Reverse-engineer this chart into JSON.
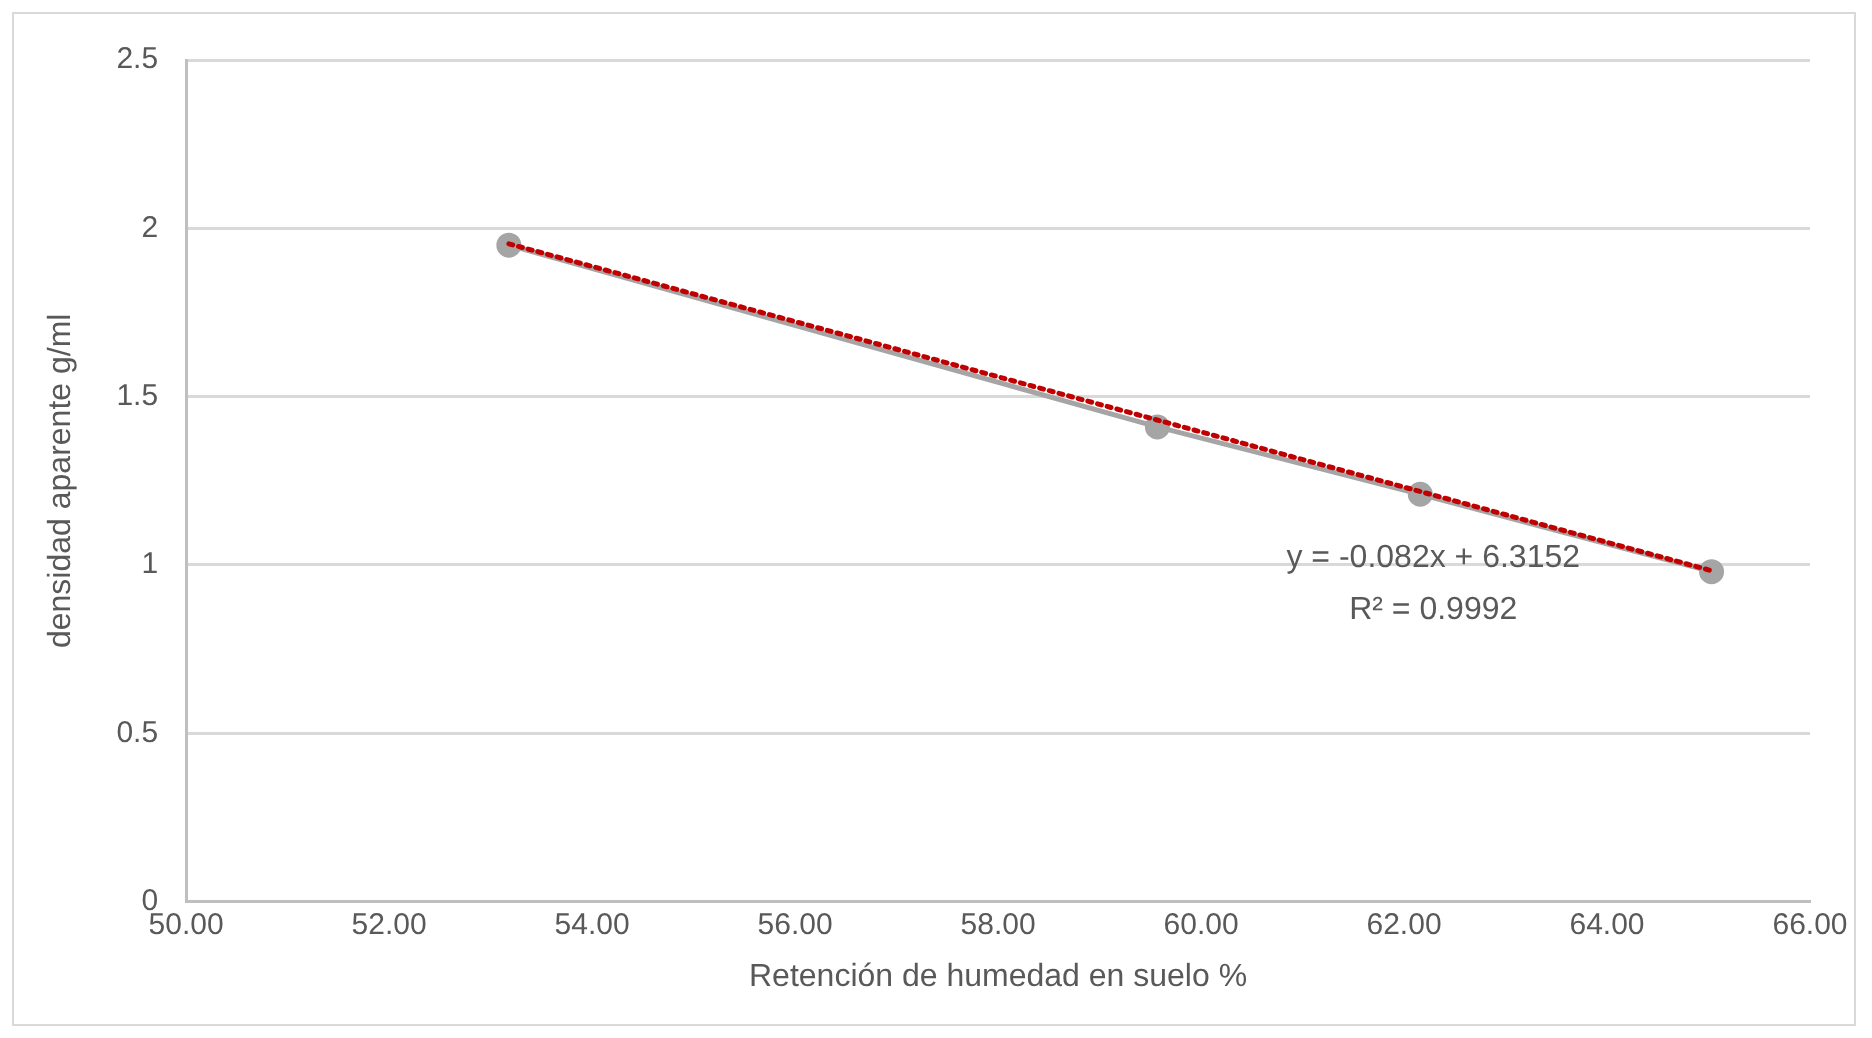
{
  "chart_data": {
    "type": "line",
    "xlabel": "Retención de humedad en suelo %",
    "ylabel": "densidad aparente g/ml",
    "xlim": [
      50,
      66
    ],
    "xticks": [
      {
        "value": 50,
        "label": "50.00"
      },
      {
        "value": 52,
        "label": "52.00"
      },
      {
        "value": 54,
        "label": "54.00"
      },
      {
        "value": 56,
        "label": "56.00"
      },
      {
        "value": 58,
        "label": "58.00"
      },
      {
        "value": 60,
        "label": "60.00"
      },
      {
        "value": 62,
        "label": "62.00"
      },
      {
        "value": 64,
        "label": "64.00"
      },
      {
        "value": 66,
        "label": "66.00"
      }
    ],
    "ylim": [
      0,
      2.5
    ],
    "yticks": [
      0,
      0.5,
      1,
      1.5,
      2,
      2.5
    ],
    "grid": "y",
    "legend": false,
    "series": [
      {
        "color": "#a5a5a5",
        "marker": "circle",
        "line_style": "solid",
        "x": [
          53.18,
          59.57,
          62.16,
          65.03
        ],
        "values": [
          1.95,
          1.41,
          1.21,
          0.98
        ]
      },
      {
        "color": "#c00000",
        "marker": "none",
        "line_style": "dotted",
        "x": [
          53.18,
          65.03
        ],
        "values": [
          1.954,
          0.983
        ]
      }
    ],
    "annotations": [
      "y = -0.082x + 6.3152",
      "R² = 0.9992"
    ]
  }
}
